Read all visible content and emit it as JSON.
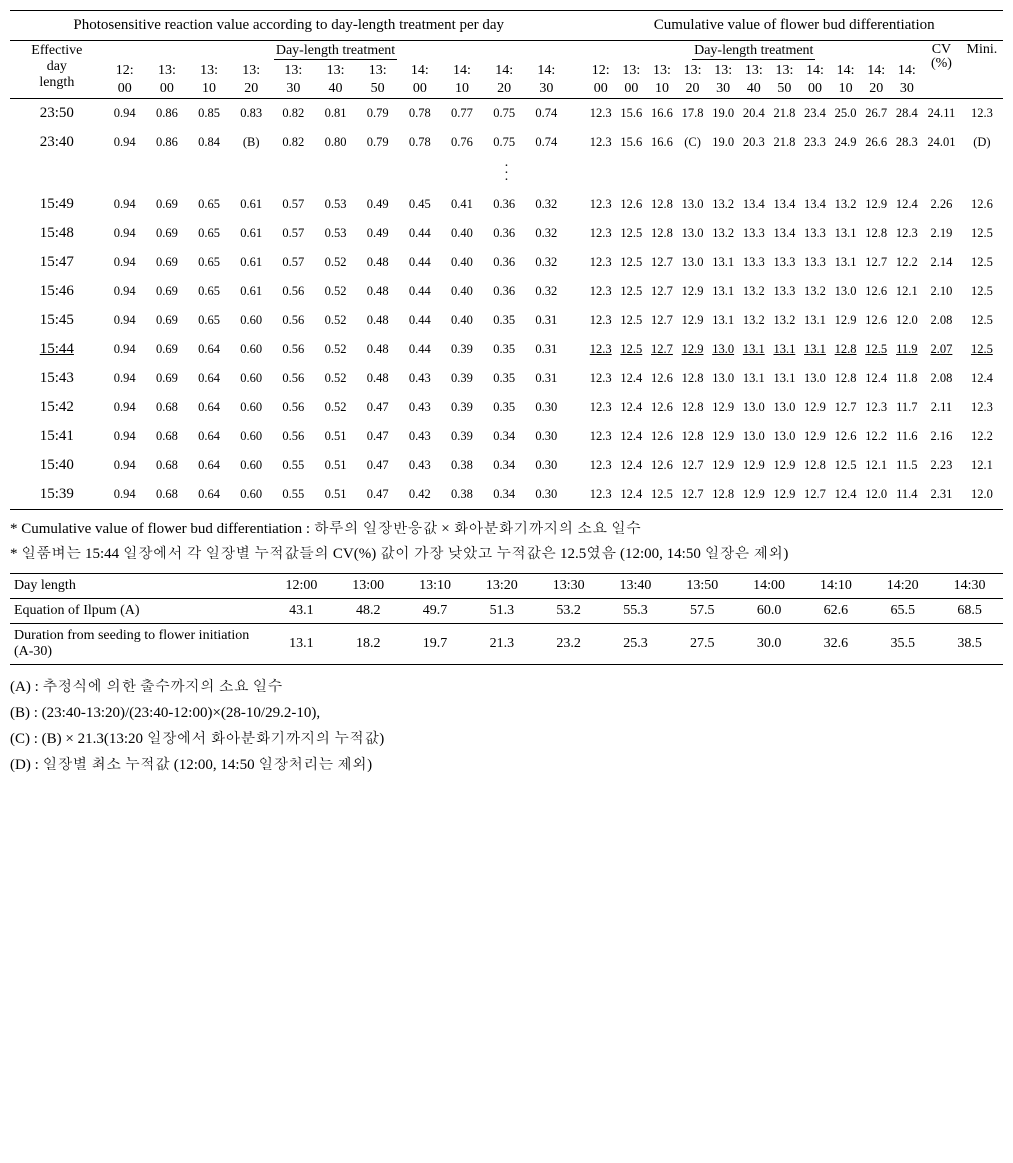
{
  "headers": {
    "left_super": "Photosensitive reaction value according to day-length treatment per day",
    "right_super": "Cumulative value of flower bud differentiation",
    "effective": "Effective day length",
    "dlt": "Day-length treatment",
    "cv": "CV (%)",
    "mini": "Mini.",
    "ticks_top": [
      "12:",
      "13:",
      "13:",
      "13:",
      "13:",
      "13:",
      "13:",
      "14:",
      "14:",
      "14:",
      "14:"
    ],
    "ticks_bot": [
      "00",
      "00",
      "10",
      "20",
      "30",
      "40",
      "50",
      "00",
      "10",
      "20",
      "30"
    ]
  },
  "rows": [
    {
      "label": "23:50",
      "left": [
        "0.94",
        "0.86",
        "0.85",
        "0.83",
        "0.82",
        "0.81",
        "0.79",
        "0.78",
        "0.77",
        "0.75",
        "0.74"
      ],
      "right": [
        "12.3",
        "15.6",
        "16.6",
        "17.8",
        "19.0",
        "20.4",
        "21.8",
        "23.4",
        "25.0",
        "26.7",
        "28.4"
      ],
      "cv": "24.11",
      "mini": "12.3"
    },
    {
      "label": "23:40",
      "left": [
        "0.94",
        "0.86",
        "0.84",
        "(B)",
        "0.82",
        "0.80",
        "0.79",
        "0.78",
        "0.76",
        "0.75",
        "0.74"
      ],
      "left_bold": [
        3
      ],
      "right": [
        "12.3",
        "15.6",
        "16.6",
        "(C)",
        "19.0",
        "20.3",
        "21.8",
        "23.3",
        "24.9",
        "26.6",
        "28.3"
      ],
      "right_bold": [
        3
      ],
      "cv": "24.01",
      "mini": "(D)",
      "mini_bold": true
    },
    {
      "ellipsis": true
    },
    {
      "label": "15:49",
      "left": [
        "0.94",
        "0.69",
        "0.65",
        "0.61",
        "0.57",
        "0.53",
        "0.49",
        "0.45",
        "0.41",
        "0.36",
        "0.32"
      ],
      "right": [
        "12.3",
        "12.6",
        "12.8",
        "13.0",
        "13.2",
        "13.4",
        "13.4",
        "13.4",
        "13.2",
        "12.9",
        "12.4"
      ],
      "cv": "2.26",
      "mini": "12.6"
    },
    {
      "label": "15:48",
      "left": [
        "0.94",
        "0.69",
        "0.65",
        "0.61",
        "0.57",
        "0.53",
        "0.49",
        "0.44",
        "0.40",
        "0.36",
        "0.32"
      ],
      "right": [
        "12.3",
        "12.5",
        "12.8",
        "13.0",
        "13.2",
        "13.3",
        "13.4",
        "13.3",
        "13.1",
        "12.8",
        "12.3"
      ],
      "cv": "2.19",
      "mini": "12.5"
    },
    {
      "label": "15:47",
      "left": [
        "0.94",
        "0.69",
        "0.65",
        "0.61",
        "0.57",
        "0.52",
        "0.48",
        "0.44",
        "0.40",
        "0.36",
        "0.32"
      ],
      "right": [
        "12.3",
        "12.5",
        "12.7",
        "13.0",
        "13.1",
        "13.3",
        "13.3",
        "13.3",
        "13.1",
        "12.7",
        "12.2"
      ],
      "cv": "2.14",
      "mini": "12.5"
    },
    {
      "label": "15:46",
      "left": [
        "0.94",
        "0.69",
        "0.65",
        "0.61",
        "0.56",
        "0.52",
        "0.48",
        "0.44",
        "0.40",
        "0.36",
        "0.32"
      ],
      "right": [
        "12.3",
        "12.5",
        "12.7",
        "12.9",
        "13.1",
        "13.2",
        "13.3",
        "13.2",
        "13.0",
        "12.6",
        "12.1"
      ],
      "cv": "2.10",
      "mini": "12.5"
    },
    {
      "label": "15:45",
      "left": [
        "0.94",
        "0.69",
        "0.65",
        "0.60",
        "0.56",
        "0.52",
        "0.48",
        "0.44",
        "0.40",
        "0.35",
        "0.31"
      ],
      "right": [
        "12.3",
        "12.5",
        "12.7",
        "12.9",
        "13.1",
        "13.2",
        "13.2",
        "13.1",
        "12.9",
        "12.6",
        "12.0"
      ],
      "cv": "2.08",
      "mini": "12.5"
    },
    {
      "label": "15:44",
      "underline": true,
      "left": [
        "0.94",
        "0.69",
        "0.64",
        "0.60",
        "0.56",
        "0.52",
        "0.48",
        "0.44",
        "0.39",
        "0.35",
        "0.31"
      ],
      "right": [
        "12.3",
        "12.5",
        "12.7",
        "12.9",
        "13.0",
        "13.1",
        "13.1",
        "13.1",
        "12.8",
        "12.5",
        "11.9"
      ],
      "cv": "2.07",
      "mini": "12.5",
      "right_underline": true
    },
    {
      "label": "15:43",
      "left": [
        "0.94",
        "0.69",
        "0.64",
        "0.60",
        "0.56",
        "0.52",
        "0.48",
        "0.43",
        "0.39",
        "0.35",
        "0.31"
      ],
      "right": [
        "12.3",
        "12.4",
        "12.6",
        "12.8",
        "13.0",
        "13.1",
        "13.1",
        "13.0",
        "12.8",
        "12.4",
        "11.8"
      ],
      "cv": "2.08",
      "mini": "12.4"
    },
    {
      "label": "15:42",
      "left": [
        "0.94",
        "0.68",
        "0.64",
        "0.60",
        "0.56",
        "0.52",
        "0.47",
        "0.43",
        "0.39",
        "0.35",
        "0.30"
      ],
      "right": [
        "12.3",
        "12.4",
        "12.6",
        "12.8",
        "12.9",
        "13.0",
        "13.0",
        "12.9",
        "12.7",
        "12.3",
        "11.7"
      ],
      "cv": "2.11",
      "mini": "12.3"
    },
    {
      "label": "15:41",
      "left": [
        "0.94",
        "0.68",
        "0.64",
        "0.60",
        "0.56",
        "0.51",
        "0.47",
        "0.43",
        "0.39",
        "0.34",
        "0.30"
      ],
      "right": [
        "12.3",
        "12.4",
        "12.6",
        "12.8",
        "12.9",
        "13.0",
        "13.0",
        "12.9",
        "12.6",
        "12.2",
        "11.6"
      ],
      "cv": "2.16",
      "mini": "12.2"
    },
    {
      "label": "15:40",
      "left": [
        "0.94",
        "0.68",
        "0.64",
        "0.60",
        "0.55",
        "0.51",
        "0.47",
        "0.43",
        "0.38",
        "0.34",
        "0.30"
      ],
      "right": [
        "12.3",
        "12.4",
        "12.6",
        "12.7",
        "12.9",
        "12.9",
        "12.9",
        "12.8",
        "12.5",
        "12.1",
        "11.5"
      ],
      "cv": "2.23",
      "mini": "12.1"
    },
    {
      "label": "15:39",
      "left": [
        "0.94",
        "0.68",
        "0.64",
        "0.60",
        "0.55",
        "0.51",
        "0.47",
        "0.42",
        "0.38",
        "0.34",
        "0.30"
      ],
      "right": [
        "12.3",
        "12.4",
        "12.5",
        "12.7",
        "12.8",
        "12.9",
        "12.9",
        "12.7",
        "12.4",
        "12.0",
        "11.4"
      ],
      "cv": "2.31",
      "mini": "12.0"
    }
  ],
  "notes": {
    "n1": "* Cumulative value of flower bud differentiation : 하루의 일장반응값 × 화아분화기까지의 소요 일수",
    "n2": "* 일품벼는 15:44 일장에서 각 일장별 누적값들의 CV(%) 값이 가장 낮았고 누적값은 12.5였음 (12:00, 14:50 일장은 제외)"
  },
  "bottom": {
    "day_length_label": "Day length",
    "day_lengths": [
      "12:00",
      "13:00",
      "13:10",
      "13:20",
      "13:30",
      "13:40",
      "13:50",
      "14:00",
      "14:10",
      "14:20",
      "14:30"
    ],
    "eq_label": "Equation of Ilpum (A)",
    "eq_vals": [
      "43.1",
      "48.2",
      "49.7",
      "51.3",
      "53.2",
      "55.3",
      "57.5",
      "60.0",
      "62.6",
      "65.5",
      "68.5"
    ],
    "dur_label": "Duration from seeding to flower initiation (A-30)",
    "dur_vals": [
      "13.1",
      "18.2",
      "19.7",
      "21.3",
      "23.2",
      "25.3",
      "27.5",
      "30.0",
      "32.6",
      "35.5",
      "38.5"
    ]
  },
  "defs": {
    "a": "(A) : 추정식에 의한 출수까지의 소요 일수",
    "b": "(B) : (23:40-13:20)/(23:40-12:00)×(28-10/29.2-10),",
    "c": "(C) : (B) × 21.3(13:20 일장에서 화아분화기까지의 누적값)",
    "d": "(D) : 일장별 최소 누적값 (12:00, 14:50 일장처리는 제외)"
  }
}
